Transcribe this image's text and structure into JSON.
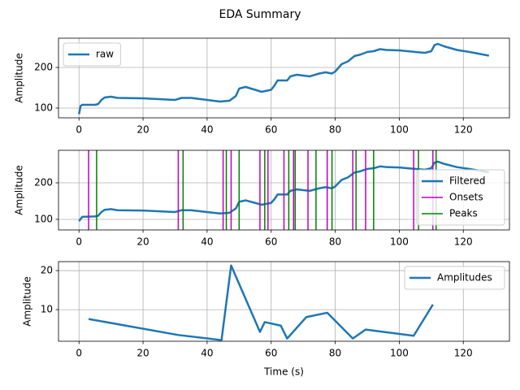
{
  "title": "EDA Summary",
  "chart_data": [
    {
      "type": "line",
      "ylabel": "Amplitude",
      "xlim": [
        -6.4,
        134.4
      ],
      "xticks": [
        0,
        20,
        40,
        60,
        80,
        100,
        120
      ],
      "ylim": [
        76,
        272
      ],
      "yticks": [
        100,
        200
      ],
      "grid": true,
      "legend": "upper left",
      "series": [
        {
          "name": "raw",
          "color": "#1f77b4",
          "x": [
            0,
            0.5,
            1,
            5,
            6,
            7,
            8,
            10,
            12,
            20,
            30,
            32,
            35,
            40,
            44,
            47,
            49,
            50,
            52,
            55,
            57,
            60,
            61,
            62,
            65,
            66,
            68,
            70,
            72,
            75,
            77,
            79,
            80,
            82,
            84,
            86,
            88,
            90,
            92,
            94,
            96,
            100,
            105,
            108,
            110,
            111,
            112,
            114,
            118,
            122,
            128
          ],
          "values": [
            85,
            105,
            108,
            108,
            110,
            120,
            126,
            128,
            125,
            124,
            120,
            125,
            125,
            120,
            116,
            118,
            130,
            148,
            152,
            145,
            140,
            145,
            155,
            168,
            168,
            178,
            182,
            180,
            178,
            185,
            188,
            185,
            190,
            208,
            215,
            228,
            232,
            238,
            240,
            245,
            243,
            242,
            238,
            236,
            240,
            255,
            258,
            252,
            243,
            238,
            229
          ]
        }
      ]
    },
    {
      "type": "line",
      "ylabel": "Amplitude",
      "xlim": [
        -6.4,
        134.4
      ],
      "xticks": [
        0,
        20,
        40,
        60,
        80,
        100,
        120
      ],
      "ylim": [
        71,
        289
      ],
      "yticks": [
        100,
        200
      ],
      "grid": true,
      "legend": "lower right",
      "series": [
        {
          "name": "Filtered",
          "color": "#1f77b4",
          "x": [
            0,
            1,
            5,
            6,
            7,
            8,
            10,
            12,
            20,
            30,
            32,
            35,
            40,
            44,
            47,
            49,
            50,
            52,
            55,
            57,
            60,
            61,
            62,
            65,
            66,
            68,
            70,
            72,
            75,
            77,
            79,
            80,
            82,
            84,
            86,
            88,
            90,
            92,
            94,
            96,
            100,
            105,
            108,
            110,
            111,
            112,
            114,
            118,
            122,
            128
          ],
          "values": [
            95,
            107,
            108,
            110,
            120,
            126,
            128,
            125,
            124,
            120,
            125,
            125,
            120,
            116,
            118,
            130,
            148,
            152,
            145,
            140,
            145,
            155,
            168,
            168,
            178,
            182,
            180,
            178,
            185,
            188,
            185,
            190,
            208,
            215,
            228,
            232,
            238,
            240,
            245,
            243,
            242,
            238,
            236,
            240,
            255,
            258,
            252,
            243,
            238,
            229
          ]
        },
        {
          "name": "Onsets",
          "color": "#bf00bf",
          "type": "vline",
          "x": [
            3,
            31,
            45,
            47.5,
            56.5,
            59,
            64,
            67,
            71.5,
            77.5,
            85.5,
            89.5,
            104.5,
            110.5
          ]
        },
        {
          "name": "Peaks",
          "color": "#008000",
          "type": "vline",
          "x": [
            5.5,
            32.5,
            46,
            50,
            58,
            65.5,
            67.5,
            74,
            79,
            86.5,
            92,
            106,
            111.5
          ]
        }
      ]
    },
    {
      "type": "line",
      "ylabel": "Amplitude",
      "xlabel": "Time (s)",
      "xlim": [
        -6.4,
        134.4
      ],
      "xticks": [
        0,
        20,
        40,
        60,
        80,
        100,
        120
      ],
      "ylim": [
        1.9,
        22.3
      ],
      "yticks": [
        10,
        20
      ],
      "grid": true,
      "legend": "upper right",
      "series": [
        {
          "name": "Amplitudes",
          "color": "#1f77b4",
          "x": [
            3,
            31,
            44.5,
            47.5,
            56.5,
            58,
            63,
            65,
            71,
            77.5,
            85.5,
            89.5,
            104.5,
            110.5
          ],
          "values": [
            7.6,
            3.5,
            2.2,
            21.3,
            4.3,
            6.8,
            5.9,
            2.6,
            8.1,
            9.2,
            2.6,
            4.9,
            3.3,
            11.3
          ]
        }
      ]
    }
  ]
}
